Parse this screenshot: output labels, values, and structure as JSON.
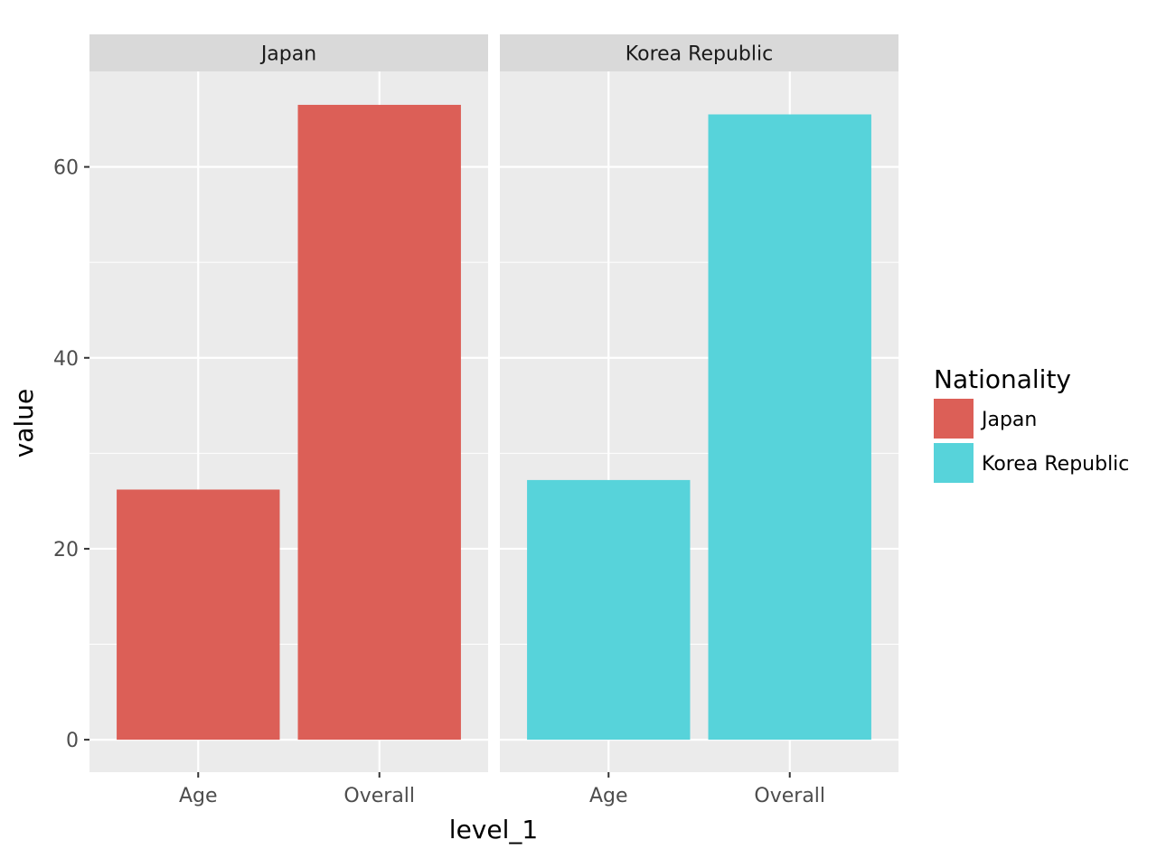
{
  "chart_data": {
    "type": "bar",
    "facet_by": "Nationality",
    "categories": [
      "Age",
      "Overall"
    ],
    "facets": [
      {
        "name": "Japan",
        "values": [
          26.2,
          66.5
        ],
        "color": "#DC5F57"
      },
      {
        "name": "Korea Republic",
        "values": [
          27.2,
          65.5
        ],
        "color": "#57D3DA"
      }
    ],
    "xlabel": "level_1",
    "ylabel": "value",
    "ylim": [
      -3.4,
      70
    ],
    "yticks": [
      0,
      20,
      40,
      60
    ],
    "grid": true,
    "legend": {
      "title": "Nationality",
      "placement": "right",
      "entries": [
        {
          "label": "Japan",
          "color": "#DC5F57"
        },
        {
          "label": "Korea Republic",
          "color": "#57D3DA"
        }
      ]
    }
  }
}
